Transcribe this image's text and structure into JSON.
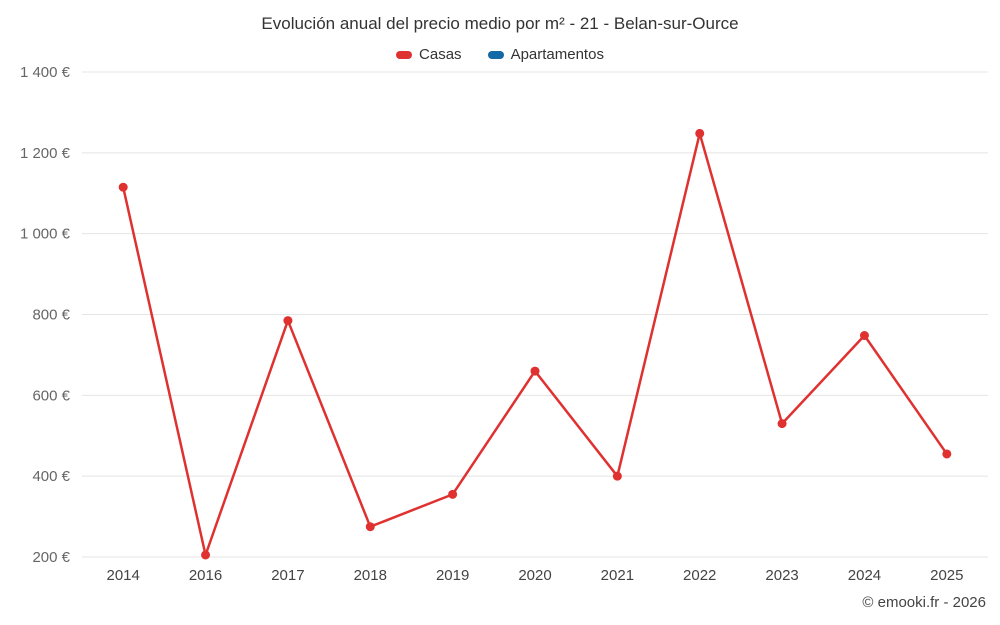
{
  "header": {
    "title": "Evolución anual del precio medio por m² - 21 - Belan-sur-Ource"
  },
  "legend": {
    "items": [
      {
        "label": "Casas",
        "color": "#e03131"
      },
      {
        "label": "Apartamentos",
        "color": "#1269a5"
      }
    ]
  },
  "footer": {
    "credit": "© emooki.fr - 2026"
  },
  "chart_data": {
    "type": "line",
    "title": "Evolución anual del precio medio por m² - 21 - Belan-sur-Ource",
    "categories": [
      "2014",
      "2016",
      "2017",
      "2018",
      "2019",
      "2020",
      "2021",
      "2022",
      "2023",
      "2024",
      "2025"
    ],
    "series": [
      {
        "name": "Casas",
        "color": "#e03131",
        "values": [
          1115,
          205,
          785,
          275,
          355,
          660,
          400,
          1248,
          530,
          748,
          455
        ]
      },
      {
        "name": "Apartamentos",
        "color": "#1269a5",
        "values": []
      }
    ],
    "xlabel": "",
    "ylabel": "",
    "ylim": [
      200,
      1400
    ],
    "y_ticks": [
      200,
      400,
      600,
      800,
      1000,
      1200,
      1400
    ],
    "y_tick_labels": [
      "200 €",
      "400 €",
      "600 €",
      "800 €",
      "1 000 €",
      "1 200 €",
      "1 400 €"
    ],
    "grid": true,
    "legend_position": "top"
  }
}
